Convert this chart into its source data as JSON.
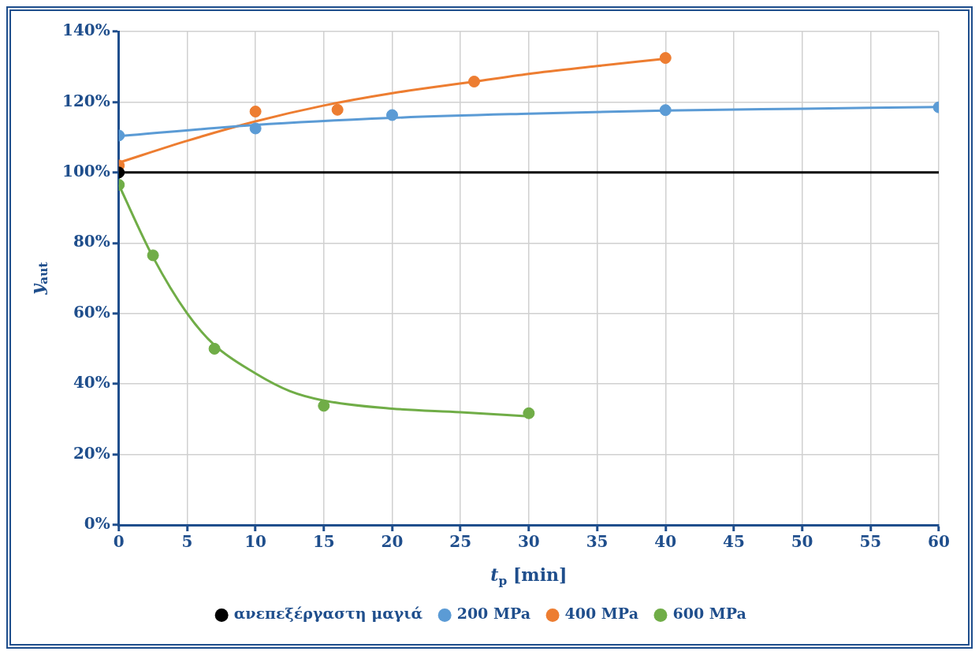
{
  "chart_data": {
    "type": "scatter",
    "xlabel": "t$_{p}$ [min]",
    "ylabel": "y$_{aut}$",
    "xlim": [
      0,
      60
    ],
    "xticks": [
      0,
      5,
      10,
      15,
      20,
      25,
      30,
      35,
      40,
      45,
      50,
      55,
      60
    ],
    "ylim": [
      0,
      140
    ],
    "yticks": [
      {
        "value": 0,
        "label": "0%"
      },
      {
        "value": 20,
        "label": "20%"
      },
      {
        "value": 40,
        "label": "40%"
      },
      {
        "value": 60,
        "label": "60%"
      },
      {
        "value": 80,
        "label": "80%"
      },
      {
        "value": 100,
        "label": "100%"
      },
      {
        "value": 120,
        "label": "120%"
      },
      {
        "value": 140,
        "label": "140%"
      }
    ],
    "grid": true,
    "legend": "bottom",
    "marker": "circle",
    "series": [
      {
        "name": "ανεπεξέργαστη μαγιά",
        "color": "#000000",
        "x": [
          0
        ],
        "values": [
          100
        ]
      },
      {
        "name": "200 MPa",
        "color": "#5b9bd5",
        "x": [
          0,
          10,
          20,
          40,
          60
        ],
        "values": [
          110.5,
          112.5,
          116.3,
          117.7,
          118.5
        ]
      },
      {
        "name": "400 MPa",
        "color": "#ed7d31",
        "x": [
          0,
          10,
          16,
          26,
          40
        ],
        "values": [
          102,
          117.3,
          117.8,
          125.8,
          132.5
        ]
      },
      {
        "name": "600 MPa",
        "color": "#70ad47",
        "x": [
          0,
          2.5,
          7,
          15,
          30
        ],
        "values": [
          96.5,
          76.5,
          50,
          33.8,
          31.7
        ]
      },
      {
        "type": "line",
        "marker": "none",
        "color": "#000000",
        "x": [
          0,
          60
        ],
        "values": [
          100,
          100
        ]
      },
      {
        "type": "line",
        "marker": "none",
        "color": "#5b9bd5",
        "x": [
          0,
          10,
          20,
          30,
          40,
          50,
          60
        ],
        "values": [
          110.3,
          113.5,
          115.5,
          116.7,
          117.6,
          118.1,
          118.6
        ]
      },
      {
        "type": "line",
        "marker": "none",
        "color": "#ed7d31",
        "x": [
          0,
          5,
          10,
          15,
          20,
          26,
          30,
          35,
          40
        ],
        "values": [
          102.8,
          109,
          114.5,
          119,
          122.5,
          125.8,
          128,
          130.2,
          132.3
        ]
      },
      {
        "type": "line",
        "marker": "none",
        "color": "#70ad47",
        "x": [
          0,
          2.5,
          5,
          7,
          10,
          12.5,
          15,
          20,
          25,
          30
        ],
        "values": [
          96.5,
          76,
          60,
          51,
          43,
          38,
          35.3,
          33,
          32,
          30.8
        ]
      }
    ]
  }
}
